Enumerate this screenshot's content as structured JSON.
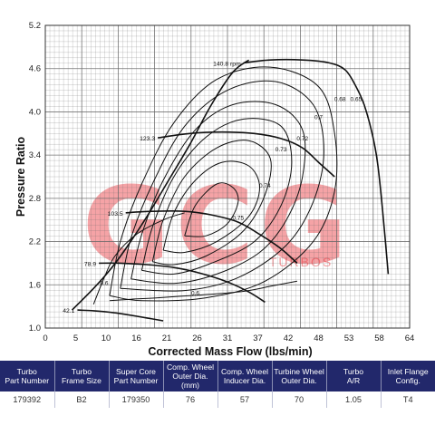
{
  "chart_data": {
    "type": "line",
    "title": "",
    "xlabel": "Corrected Mass Flow (lbs/min)",
    "ylabel": "Pressure Ratio",
    "xlim": [
      0,
      68
    ],
    "ylim": [
      1.0,
      5.2
    ],
    "x_ticks": [
      "0",
      "5",
      "10",
      "16",
      "21",
      "26",
      "31",
      "37",
      "42",
      "48",
      "53",
      "58",
      "64"
    ],
    "y_ticks": [
      "1.0",
      "1.6",
      "2.2",
      "2.8",
      "3.4",
      "4.0",
      "4.6",
      "5.2"
    ],
    "grid": true,
    "speed_lines": [
      {
        "label": "42.1",
        "points": [
          [
            6,
            1.25
          ],
          [
            9,
            1.24
          ],
          [
            12,
            1.22
          ],
          [
            15,
            1.19
          ],
          [
            19,
            1.14
          ],
          [
            22,
            1.1
          ]
        ]
      },
      {
        "label": "78.9",
        "points": [
          [
            10,
            1.9
          ],
          [
            14,
            1.9
          ],
          [
            19,
            1.88
          ],
          [
            24,
            1.84
          ],
          [
            29,
            1.76
          ],
          [
            34,
            1.64
          ],
          [
            38,
            1.5
          ],
          [
            41,
            1.36
          ]
        ]
      },
      {
        "label": "103.5",
        "points": [
          [
            15,
            2.6
          ],
          [
            20,
            2.62
          ],
          [
            26,
            2.62
          ],
          [
            31,
            2.57
          ],
          [
            36,
            2.47
          ],
          [
            40,
            2.3
          ],
          [
            44,
            2.1
          ],
          [
            47,
            1.9
          ]
        ]
      },
      {
        "label": "123.3",
        "points": [
          [
            21,
            3.64
          ],
          [
            27,
            3.7
          ],
          [
            33,
            3.72
          ],
          [
            39,
            3.7
          ],
          [
            44,
            3.63
          ],
          [
            48,
            3.5
          ],
          [
            51,
            3.3
          ],
          [
            54,
            3.1
          ]
        ]
      },
      {
        "label": "140.8 rpm",
        "points": [
          [
            37,
            4.68
          ],
          [
            42,
            4.72
          ],
          [
            48,
            4.72
          ],
          [
            53,
            4.68
          ],
          [
            56,
            4.58
          ],
          [
            58,
            4.35
          ],
          [
            59.5,
            4.1
          ],
          [
            61,
            3.7
          ],
          [
            62,
            3.3
          ],
          [
            63,
            2.6
          ],
          [
            64,
            1.75
          ]
        ]
      }
    ],
    "surge_line": [
      [
        5,
        1.25
      ],
      [
        9,
        1.55
      ],
      [
        12,
        1.8
      ],
      [
        15,
        2.1
      ],
      [
        19,
        2.55
      ],
      [
        23,
        3.05
      ],
      [
        27,
        3.55
      ],
      [
        31,
        4.1
      ],
      [
        35,
        4.55
      ],
      [
        38,
        4.72
      ]
    ],
    "efficiency_islands": [
      {
        "label": "0.75",
        "points": [
          [
            26,
            2.28
          ],
          [
            28,
            2.7
          ],
          [
            32,
            3.0
          ],
          [
            35,
            2.95
          ],
          [
            36,
            2.75
          ],
          [
            34,
            2.45
          ],
          [
            30,
            2.28
          ],
          [
            26,
            2.28
          ]
        ]
      },
      {
        "label": "0.74",
        "points": [
          [
            22,
            2.08
          ],
          [
            24,
            2.6
          ],
          [
            28,
            3.05
          ],
          [
            33,
            3.3
          ],
          [
            38,
            3.25
          ],
          [
            40,
            2.95
          ],
          [
            38,
            2.55
          ],
          [
            32,
            2.2
          ],
          [
            26,
            2.05
          ],
          [
            22,
            2.08
          ]
        ]
      },
      {
        "label": "0.73",
        "points": [
          [
            20,
            1.92
          ],
          [
            22,
            2.5
          ],
          [
            26,
            3.1
          ],
          [
            32,
            3.5
          ],
          [
            38,
            3.6
          ],
          [
            42,
            3.35
          ],
          [
            41,
            2.85
          ],
          [
            37,
            2.35
          ],
          [
            30,
            2.0
          ],
          [
            24,
            1.88
          ],
          [
            20,
            1.92
          ]
        ]
      },
      {
        "label": "0.72",
        "points": [
          [
            18,
            1.8
          ],
          [
            20,
            2.4
          ],
          [
            24,
            3.1
          ],
          [
            30,
            3.65
          ],
          [
            37,
            3.9
          ],
          [
            44,
            3.8
          ],
          [
            46,
            3.3
          ],
          [
            44,
            2.7
          ],
          [
            39,
            2.2
          ],
          [
            31,
            1.9
          ],
          [
            24,
            1.75
          ],
          [
            18,
            1.8
          ]
        ]
      },
      {
        "label": "0.7",
        "points": [
          [
            16,
            1.68
          ],
          [
            18,
            2.3
          ],
          [
            22,
            3.05
          ],
          [
            28,
            3.75
          ],
          [
            35,
            4.1
          ],
          [
            43,
            4.1
          ],
          [
            48,
            3.75
          ],
          [
            48,
            3.1
          ],
          [
            45,
            2.5
          ],
          [
            40,
            2.05
          ],
          [
            32,
            1.75
          ],
          [
            24,
            1.62
          ],
          [
            16,
            1.68
          ]
        ]
      },
      {
        "label": "0.68",
        "points": [
          [
            14,
            1.55
          ],
          [
            16,
            2.25
          ],
          [
            20,
            3.0
          ],
          [
            26,
            3.8
          ],
          [
            34,
            4.3
          ],
          [
            43,
            4.42
          ],
          [
            50,
            4.1
          ],
          [
            52,
            3.45
          ],
          [
            50,
            2.75
          ],
          [
            45,
            2.15
          ],
          [
            36,
            1.7
          ],
          [
            26,
            1.52
          ],
          [
            14,
            1.55
          ]
        ]
      },
      {
        "label": "0.65",
        "points": [
          [
            12,
            1.45
          ],
          [
            14,
            2.2
          ],
          [
            18,
            3.0
          ],
          [
            24,
            3.85
          ],
          [
            32,
            4.45
          ],
          [
            42,
            4.62
          ],
          [
            51,
            4.35
          ],
          [
            54,
            3.7
          ],
          [
            54,
            2.9
          ],
          [
            50,
            2.2
          ],
          [
            41,
            1.65
          ],
          [
            30,
            1.42
          ],
          [
            18,
            1.38
          ],
          [
            12,
            1.45
          ]
        ]
      },
      {
        "label": "0.6",
        "points": [
          [
            9,
            1.33
          ],
          [
            11,
            1.7
          ],
          [
            13,
            2.0
          ],
          [
            17,
            2.3
          ],
          [
            22,
            2.5
          ],
          [
            26,
            2.6
          ]
        ]
      },
      {
        "label": "0.6",
        "points": [
          [
            12,
            1.38
          ],
          [
            16,
            1.4
          ],
          [
            21,
            1.42
          ],
          [
            27,
            1.45
          ],
          [
            33,
            1.48
          ],
          [
            38,
            1.52
          ],
          [
            42,
            1.58
          ],
          [
            47,
            1.65
          ]
        ]
      }
    ]
  },
  "watermark": {
    "text": "GCG",
    "subtext": "TURBOS",
    "color": "#e8343a"
  },
  "spec_table": {
    "headers": [
      [
        "Turbo",
        "Part Number"
      ],
      [
        "Turbo",
        "Frame Size"
      ],
      [
        "Super Core",
        "Part Number"
      ],
      [
        "Comp. Wheel",
        "Outer Dia. (mm)"
      ],
      [
        "Comp. Wheel",
        "Inducer Dia."
      ],
      [
        "Turbine Wheel",
        "Outer Dia."
      ],
      [
        "Turbo",
        "A/R"
      ],
      [
        "Inlet Flange",
        "Config."
      ]
    ],
    "row": [
      "179392",
      "B2",
      "179350",
      "76",
      "57",
      "70",
      "1.05",
      "T4"
    ]
  },
  "colors": {
    "header_bg": "#22286b",
    "line": "#111111",
    "grid": "#666666"
  }
}
